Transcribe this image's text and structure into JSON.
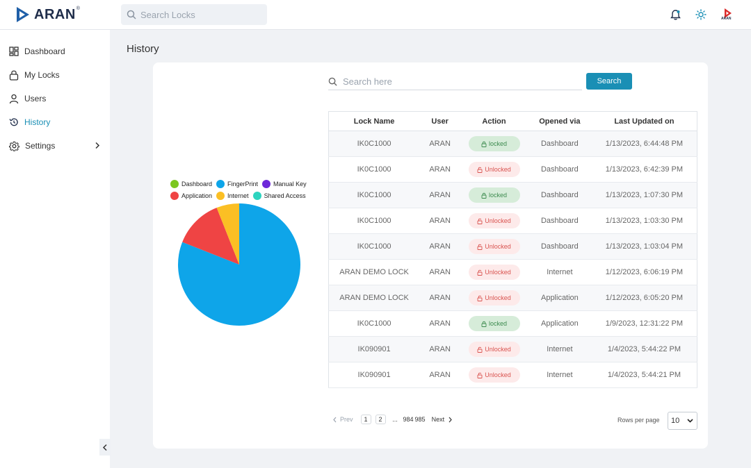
{
  "header": {
    "logo_text": "ARAN",
    "logo_mark": "®",
    "search_placeholder": "Search Locks",
    "avatar_text": "ARAN",
    "icons": [
      "search-icon",
      "bell-icon",
      "sun-icon",
      "aran-avatar-icon"
    ]
  },
  "sidebar": {
    "items": [
      {
        "label": "Dashboard",
        "icon": "dashboard-icon"
      },
      {
        "label": "My Locks",
        "icon": "lock-icon"
      },
      {
        "label": "Users",
        "icon": "user-icon"
      },
      {
        "label": "History",
        "icon": "history-icon",
        "active": true
      },
      {
        "label": "Settings",
        "icon": "gear-icon",
        "expandable": true
      }
    ]
  },
  "page": {
    "title": "History"
  },
  "legend": [
    {
      "label": "Dashboard",
      "color": "#7cc71f"
    },
    {
      "label": "FingerPrint",
      "color": "#0ea5e9"
    },
    {
      "label": "Manual Key",
      "color": "#6d28d9"
    },
    {
      "label": "Application",
      "color": "#ef4444"
    },
    {
      "label": "Internet",
      "color": "#fbbf24"
    },
    {
      "label": "Shared Access",
      "color": "#2dd4bf"
    }
  ],
  "pie_data": {
    "type": "pie",
    "slices": [
      {
        "label": "FingerPrint",
        "value": 81,
        "color": "#0ea5e9"
      },
      {
        "label": "Application",
        "value": 13,
        "color": "#ef4444"
      },
      {
        "label": "Internet",
        "value": 6,
        "color": "#fbbf24"
      }
    ]
  },
  "search": {
    "placeholder": "Search here",
    "button_label": "Search"
  },
  "table": {
    "headers": [
      "Lock Name",
      "User",
      "Action",
      "Opened via",
      "Last Updated on"
    ],
    "rows": [
      {
        "lock": "IK0C1000",
        "user": "ARAN",
        "action": "locked",
        "via": "Dashboard",
        "updated": "1/13/2023, 6:44:48 PM"
      },
      {
        "lock": "IK0C1000",
        "user": "ARAN",
        "action": "Unlocked",
        "via": "Dashboard",
        "updated": "1/13/2023, 6:42:39 PM"
      },
      {
        "lock": "IK0C1000",
        "user": "ARAN",
        "action": "locked",
        "via": "Dashboard",
        "updated": "1/13/2023, 1:07:30 PM"
      },
      {
        "lock": "IK0C1000",
        "user": "ARAN",
        "action": "Unlocked",
        "via": "Dashboard",
        "updated": "1/13/2023, 1:03:30 PM"
      },
      {
        "lock": "IK0C1000",
        "user": "ARAN",
        "action": "Unlocked",
        "via": "Dashboard",
        "updated": "1/13/2023, 1:03:04 PM"
      },
      {
        "lock": "ARAN DEMO LOCK",
        "user": "ARAN",
        "action": "Unlocked",
        "via": "Internet",
        "updated": "1/12/2023, 6:06:19 PM"
      },
      {
        "lock": "ARAN DEMO LOCK",
        "user": "ARAN",
        "action": "Unlocked",
        "via": "Application",
        "updated": "1/12/2023, 6:05:20 PM"
      },
      {
        "lock": "IK0C1000",
        "user": "ARAN",
        "action": "locked",
        "via": "Application",
        "updated": "1/9/2023, 12:31:22 PM"
      },
      {
        "lock": "IK090901",
        "user": "ARAN",
        "action": "Unlocked",
        "via": "Internet",
        "updated": "1/4/2023, 5:44:22 PM"
      },
      {
        "lock": "IK090901",
        "user": "ARAN",
        "action": "Unlocked",
        "via": "Internet",
        "updated": "1/4/2023, 5:44:21 PM"
      }
    ]
  },
  "pagination": {
    "prev_label": "Prev",
    "next_label": "Next",
    "pages": [
      "1",
      "2"
    ],
    "ellipsis": "...",
    "last_pages": [
      "984",
      "985"
    ],
    "current_page": "1",
    "rows_per_page_label": "Rows per page",
    "rows_per_page_value": "10"
  }
}
